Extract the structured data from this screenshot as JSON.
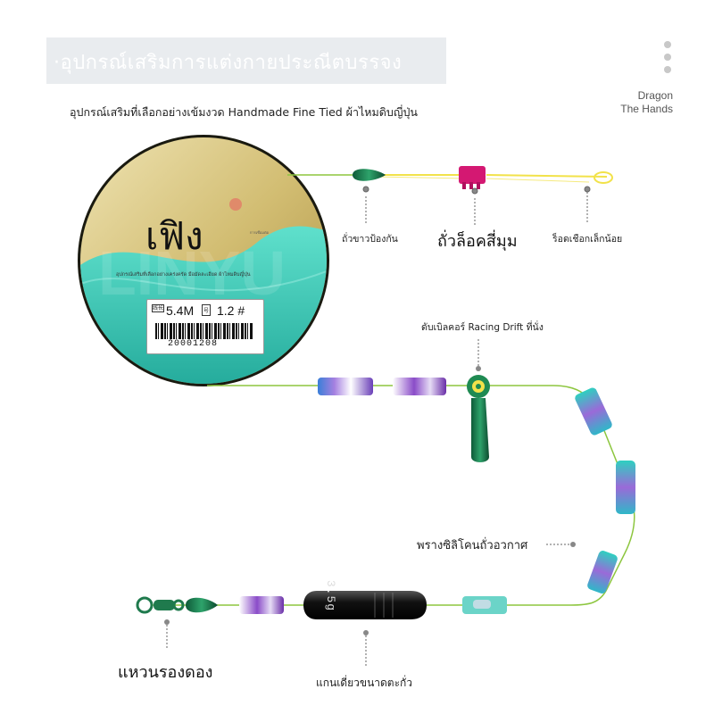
{
  "header": {
    "title": "·อุปกรณ์เสริมการแต่งกายประณีตบรรจง",
    "subtitle": "อุปกรณ์เสริมที่เลือกอย่างเข้มงวด Handmade Fine Tied ผ้าไหมดิบญี่ปุ่น"
  },
  "brand": {
    "line1": "Dragon",
    "line2": "The Hands"
  },
  "spool": {
    "name": "เฟิง",
    "small_label": "การเชื่อมต่อ",
    "description": "อุปกรณ์เสริมที่เลือกอย่างเคร่งครัด มือมัดละเอียด ผ้าไหมดิบญี่ปุ่น",
    "length_label": "线长",
    "length": "5.4M",
    "size_label": "号",
    "size": "1.2 #",
    "barcode": "20001208"
  },
  "callouts": {
    "bean_guard": "ถั่วขาวป้องกัน",
    "lock_bean": "ถั่วล็อคสี่มุม",
    "knot": "ร็อดเชือกเล็กน้อย",
    "drift_seat": "ดับเบิลคอร์ Racing Drift ที่นั่ง",
    "silicone": "พรางซิลิโคนถั่วอวกาศ",
    "swivel": "แหวนรองดอง",
    "sinker": "แกนเดี่ยวขนาดตะกั่ว"
  },
  "sinker_marking": "3.5g",
  "colors": {
    "line": "#8dc63f",
    "yellow_line": "#f2e24a",
    "green_bead": "#1f7a4d",
    "magenta_stopper": "#d41872",
    "spool_gold": "#d6c37a",
    "spool_teal": "#3cc7b4",
    "purple_tube": "#7a4fc2"
  },
  "icons": [
    "menu-dots-icon",
    "callout-pin-icon"
  ]
}
